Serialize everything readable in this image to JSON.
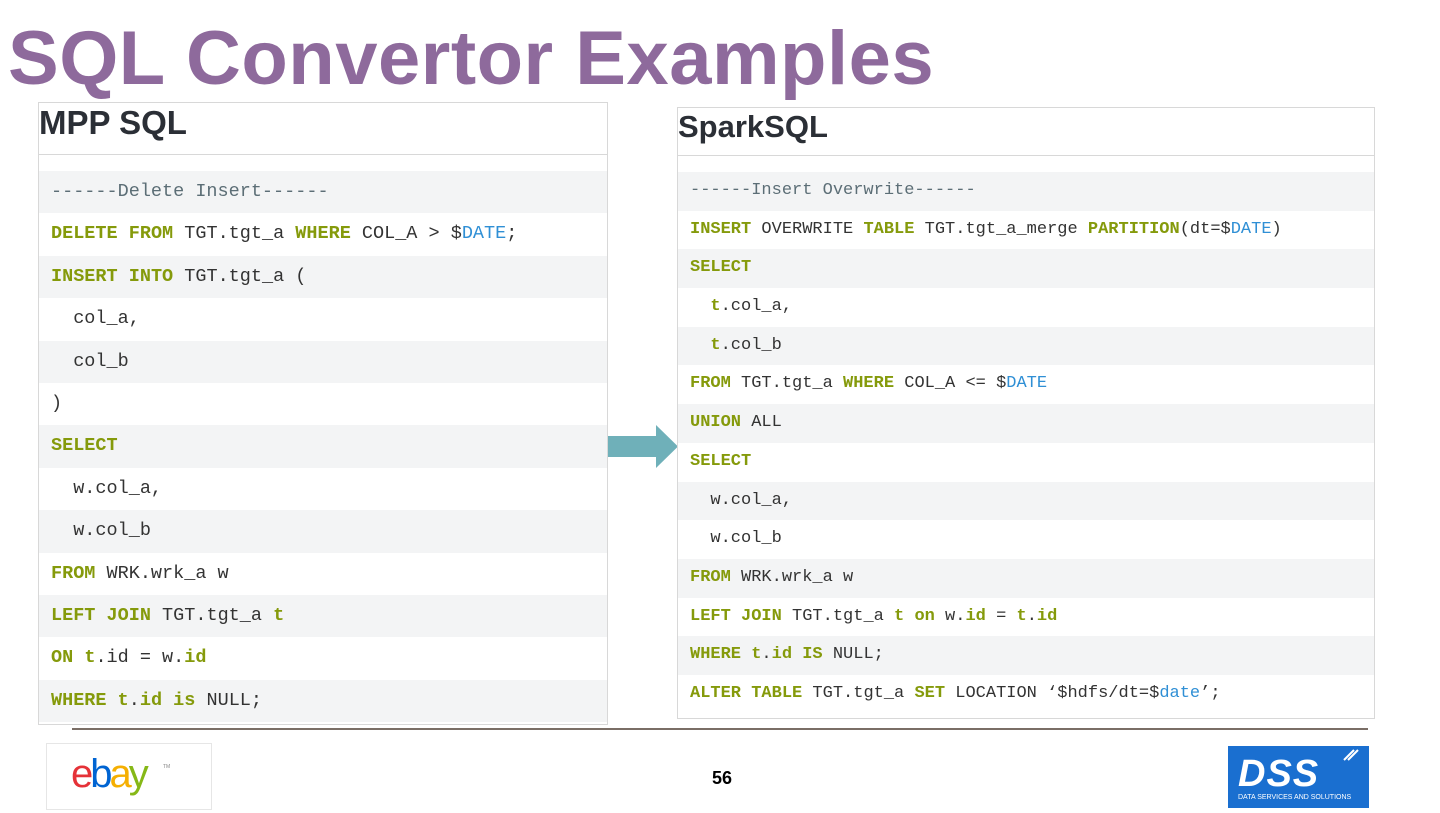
{
  "title": "SQL Convertor Examples",
  "left_panel": {
    "heading": "MPP SQL",
    "lines": [
      [
        [
          "c",
          "------Delete Insert------"
        ]
      ],
      [
        [
          "k",
          "DELETE"
        ],
        [
          "t",
          " "
        ],
        [
          "k",
          "FROM"
        ],
        [
          "t",
          " TGT.tgt_a "
        ],
        [
          "k",
          "WHERE"
        ],
        [
          "t",
          " COL_A > $"
        ],
        [
          "v",
          "DATE"
        ],
        [
          "t",
          ";"
        ]
      ],
      [
        [
          "k",
          "INSERT"
        ],
        [
          "t",
          " "
        ],
        [
          "k",
          "INTO"
        ],
        [
          "t",
          " TGT.tgt_a ("
        ]
      ],
      [
        [
          "t",
          "  col_a,"
        ]
      ],
      [
        [
          "t",
          "  col_b"
        ]
      ],
      [
        [
          "t",
          ")"
        ]
      ],
      [
        [
          "k",
          "SELECT"
        ]
      ],
      [
        [
          "t",
          "  w.col_a,"
        ]
      ],
      [
        [
          "t",
          "  w.col_b"
        ]
      ],
      [
        [
          "k",
          "FROM"
        ],
        [
          "t",
          " WRK.wrk_a w"
        ]
      ],
      [
        [
          "k",
          "LEFT"
        ],
        [
          "t",
          " "
        ],
        [
          "k",
          "JOIN"
        ],
        [
          "t",
          " TGT.tgt_a "
        ],
        [
          "k",
          "t"
        ]
      ],
      [
        [
          "k",
          "ON"
        ],
        [
          "t",
          " "
        ],
        [
          "k",
          "t"
        ],
        [
          "t",
          ".id = w."
        ],
        [
          "k",
          "id"
        ]
      ],
      [
        [
          "k",
          "WHERE"
        ],
        [
          "t",
          " "
        ],
        [
          "k",
          "t"
        ],
        [
          "t",
          "."
        ],
        [
          "k",
          "id"
        ],
        [
          "t",
          " "
        ],
        [
          "k",
          "is"
        ],
        [
          "t",
          " NULL;"
        ]
      ]
    ]
  },
  "right_panel": {
    "heading": "SparkSQL",
    "lines": [
      [
        [
          "c",
          "------Insert Overwrite------"
        ]
      ],
      [
        [
          "k",
          "INSERT"
        ],
        [
          "t",
          " OVERWRITE "
        ],
        [
          "k",
          "TABLE"
        ],
        [
          "t",
          " TGT.tgt_a_merge "
        ],
        [
          "k",
          "PARTITION"
        ],
        [
          "t",
          "(dt=$"
        ],
        [
          "v",
          "DATE"
        ],
        [
          "t",
          ")"
        ]
      ],
      [
        [
          "k",
          "SELECT"
        ]
      ],
      [
        [
          "t",
          "  "
        ],
        [
          "k",
          "t"
        ],
        [
          "t",
          ".col_a,"
        ]
      ],
      [
        [
          "t",
          "  "
        ],
        [
          "k",
          "t"
        ],
        [
          "t",
          ".col_b"
        ]
      ],
      [
        [
          "k",
          "FROM"
        ],
        [
          "t",
          " TGT.tgt_a "
        ],
        [
          "k",
          "WHERE"
        ],
        [
          "t",
          " COL_A <= $"
        ],
        [
          "v",
          "DATE"
        ]
      ],
      [
        [
          "k",
          "UNION"
        ],
        [
          "t",
          " ALL"
        ]
      ],
      [
        [
          "k",
          "SELECT"
        ]
      ],
      [
        [
          "t",
          "  w.col_a,"
        ]
      ],
      [
        [
          "t",
          "  w.col_b"
        ]
      ],
      [
        [
          "k",
          "FROM"
        ],
        [
          "t",
          " WRK.wrk_a w"
        ]
      ],
      [
        [
          "k",
          "LEFT"
        ],
        [
          "t",
          " "
        ],
        [
          "k",
          "JOIN"
        ],
        [
          "t",
          " TGT.tgt_a "
        ],
        [
          "k",
          "t"
        ],
        [
          "t",
          " "
        ],
        [
          "k",
          "on"
        ],
        [
          "t",
          " w."
        ],
        [
          "k",
          "id"
        ],
        [
          "t",
          " = "
        ],
        [
          "k",
          "t"
        ],
        [
          "t",
          "."
        ],
        [
          "k",
          "id"
        ]
      ],
      [
        [
          "k",
          "WHERE"
        ],
        [
          "t",
          " "
        ],
        [
          "k",
          "t"
        ],
        [
          "t",
          "."
        ],
        [
          "k",
          "id"
        ],
        [
          "t",
          " "
        ],
        [
          "k",
          "IS"
        ],
        [
          "t",
          " NULL;"
        ]
      ],
      [
        [
          "k",
          "ALTER"
        ],
        [
          "t",
          " "
        ],
        [
          "k",
          "TABLE"
        ],
        [
          "t",
          " TGT.tgt_a "
        ],
        [
          "k",
          "SET"
        ],
        [
          "t",
          " LOCATION ‘$hdfs/dt=$"
        ],
        [
          "v",
          "date"
        ],
        [
          "t",
          "’;"
        ]
      ]
    ]
  },
  "footer": {
    "page_number": "56",
    "left_logo": "ebay",
    "right_logo": {
      "text": "DSS",
      "subtitle": "DATA SERVICES AND SOLUTIONS"
    }
  },
  "colors": {
    "title": "#8e6a9c",
    "keyword": "#859a0b",
    "variable": "#2f8fd5",
    "comment": "#5c6e76",
    "arrow": "#6fb0b9",
    "dss_blue": "#1a6fd0"
  },
  "icons": {
    "arrow": "right-arrow-icon"
  }
}
